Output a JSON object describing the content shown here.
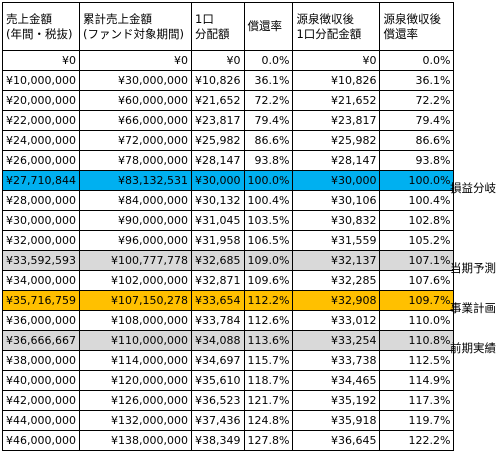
{
  "headers": [
    "売上金額\n(年間・税抜)",
    "累計売上金額\n(ファンド対象期間)",
    "1口\n分配額",
    "償還率",
    "源泉徴収後\n1口分配金額",
    "源泉徴収後\n償還率"
  ],
  "rows": [
    [
      "¥0",
      "¥0",
      "¥0",
      "0.0%",
      "¥0",
      "0.0%"
    ],
    [
      "¥10,000,000",
      "¥30,000,000",
      "¥10,826",
      "36.1%",
      "¥10,826",
      "36.1%"
    ],
    [
      "¥20,000,000",
      "¥60,000,000",
      "¥21,652",
      "72.2%",
      "¥21,652",
      "72.2%"
    ],
    [
      "¥22,000,000",
      "¥66,000,000",
      "¥23,817",
      "79.4%",
      "¥23,817",
      "79.4%"
    ],
    [
      "¥24,000,000",
      "¥72,000,000",
      "¥25,982",
      "86.6%",
      "¥25,982",
      "86.6%"
    ],
    [
      "¥26,000,000",
      "¥78,000,000",
      "¥28,147",
      "93.8%",
      "¥28,147",
      "93.8%"
    ],
    [
      "¥27,710,844",
      "¥83,132,531",
      "¥30,000",
      "100.0%",
      "¥30,000",
      "100.0%"
    ],
    [
      "¥28,000,000",
      "¥84,000,000",
      "¥30,132",
      "100.4%",
      "¥30,106",
      "100.4%"
    ],
    [
      "¥30,000,000",
      "¥90,000,000",
      "¥31,045",
      "103.5%",
      "¥30,832",
      "102.8%"
    ],
    [
      "¥32,000,000",
      "¥96,000,000",
      "¥31,958",
      "106.5%",
      "¥31,559",
      "105.2%"
    ],
    [
      "¥33,592,593",
      "¥100,777,778",
      "¥32,685",
      "109.0%",
      "¥32,137",
      "107.1%"
    ],
    [
      "¥34,000,000",
      "¥102,000,000",
      "¥32,871",
      "109.6%",
      "¥32,285",
      "107.6%"
    ],
    [
      "¥35,716,759",
      "¥107,150,278",
      "¥33,654",
      "112.2%",
      "¥32,908",
      "109.7%"
    ],
    [
      "¥36,000,000",
      "¥108,000,000",
      "¥33,784",
      "112.6%",
      "¥33,012",
      "110.0%"
    ],
    [
      "¥36,666,667",
      "¥110,000,000",
      "¥34,088",
      "113.6%",
      "¥33,254",
      "110.8%"
    ],
    [
      "¥38,000,000",
      "¥114,000,000",
      "¥34,697",
      "115.7%",
      "¥33,738",
      "112.5%"
    ],
    [
      "¥40,000,000",
      "¥120,000,000",
      "¥35,610",
      "118.7%",
      "¥34,465",
      "114.9%"
    ],
    [
      "¥42,000,000",
      "¥126,000,000",
      "¥36,523",
      "121.7%",
      "¥35,192",
      "117.3%"
    ],
    [
      "¥44,000,000",
      "¥132,000,000",
      "¥37,436",
      "124.8%",
      "¥35,918",
      "119.7%"
    ],
    [
      "¥46,000,000",
      "¥138,000,000",
      "¥38,349",
      "127.8%",
      "¥36,645",
      "122.2%"
    ]
  ],
  "notes": [
    "損益分岐",
    "当期予測",
    "事業計画",
    "前期実績"
  ],
  "highlight_colors": {
    "blue": "#00b0f0",
    "gray": "#d9d9d9",
    "orange": "#ffc000"
  }
}
